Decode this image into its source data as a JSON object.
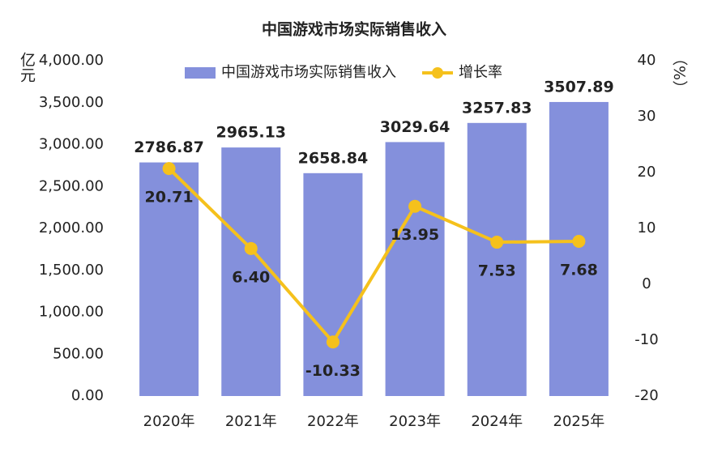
{
  "chart_data": {
    "type": "bar-line",
    "title": "中国游戏市场实际销售收入",
    "y_label": "亿元",
    "y2_label": "（%）",
    "categories": [
      "2020年",
      "2021年",
      "2022年",
      "2023年",
      "2024年",
      "2025年"
    ],
    "series": [
      {
        "name": "中国游戏市场实际销售收入",
        "type": "bar",
        "color": "#8490dc",
        "values": [
          2786.87,
          2965.13,
          2658.84,
          3029.64,
          3257.83,
          3507.89
        ]
      },
      {
        "name": "增长率",
        "type": "line",
        "axis": "y2",
        "color": "#f5c11c",
        "values": [
          20.71,
          6.4,
          -10.33,
          13.95,
          7.53,
          7.68
        ],
        "value_labels": [
          "20.71",
          "6.40",
          "-10.33",
          "13.95",
          "7.53",
          "7.68"
        ]
      }
    ],
    "ylim": [
      0,
      4000
    ],
    "yticks": [
      {
        "value": 0,
        "label": "0.00"
      },
      {
        "value": 500,
        "label": "500.00"
      },
      {
        "value": 1000,
        "label": "1,000.00"
      },
      {
        "value": 1500,
        "label": "1,500.00"
      },
      {
        "value": 2000,
        "label": "2,000.00"
      },
      {
        "value": 2500,
        "label": "2,500.00"
      },
      {
        "value": 3000,
        "label": "3,000.00"
      },
      {
        "value": 3500,
        "label": "3,500.00"
      },
      {
        "value": 4000,
        "label": "4,000.00"
      }
    ],
    "y2lim": [
      -20,
      40
    ],
    "y2ticks": [
      -20,
      -10,
      0,
      10,
      20,
      30,
      40
    ],
    "legend": "top",
    "grid": false
  }
}
